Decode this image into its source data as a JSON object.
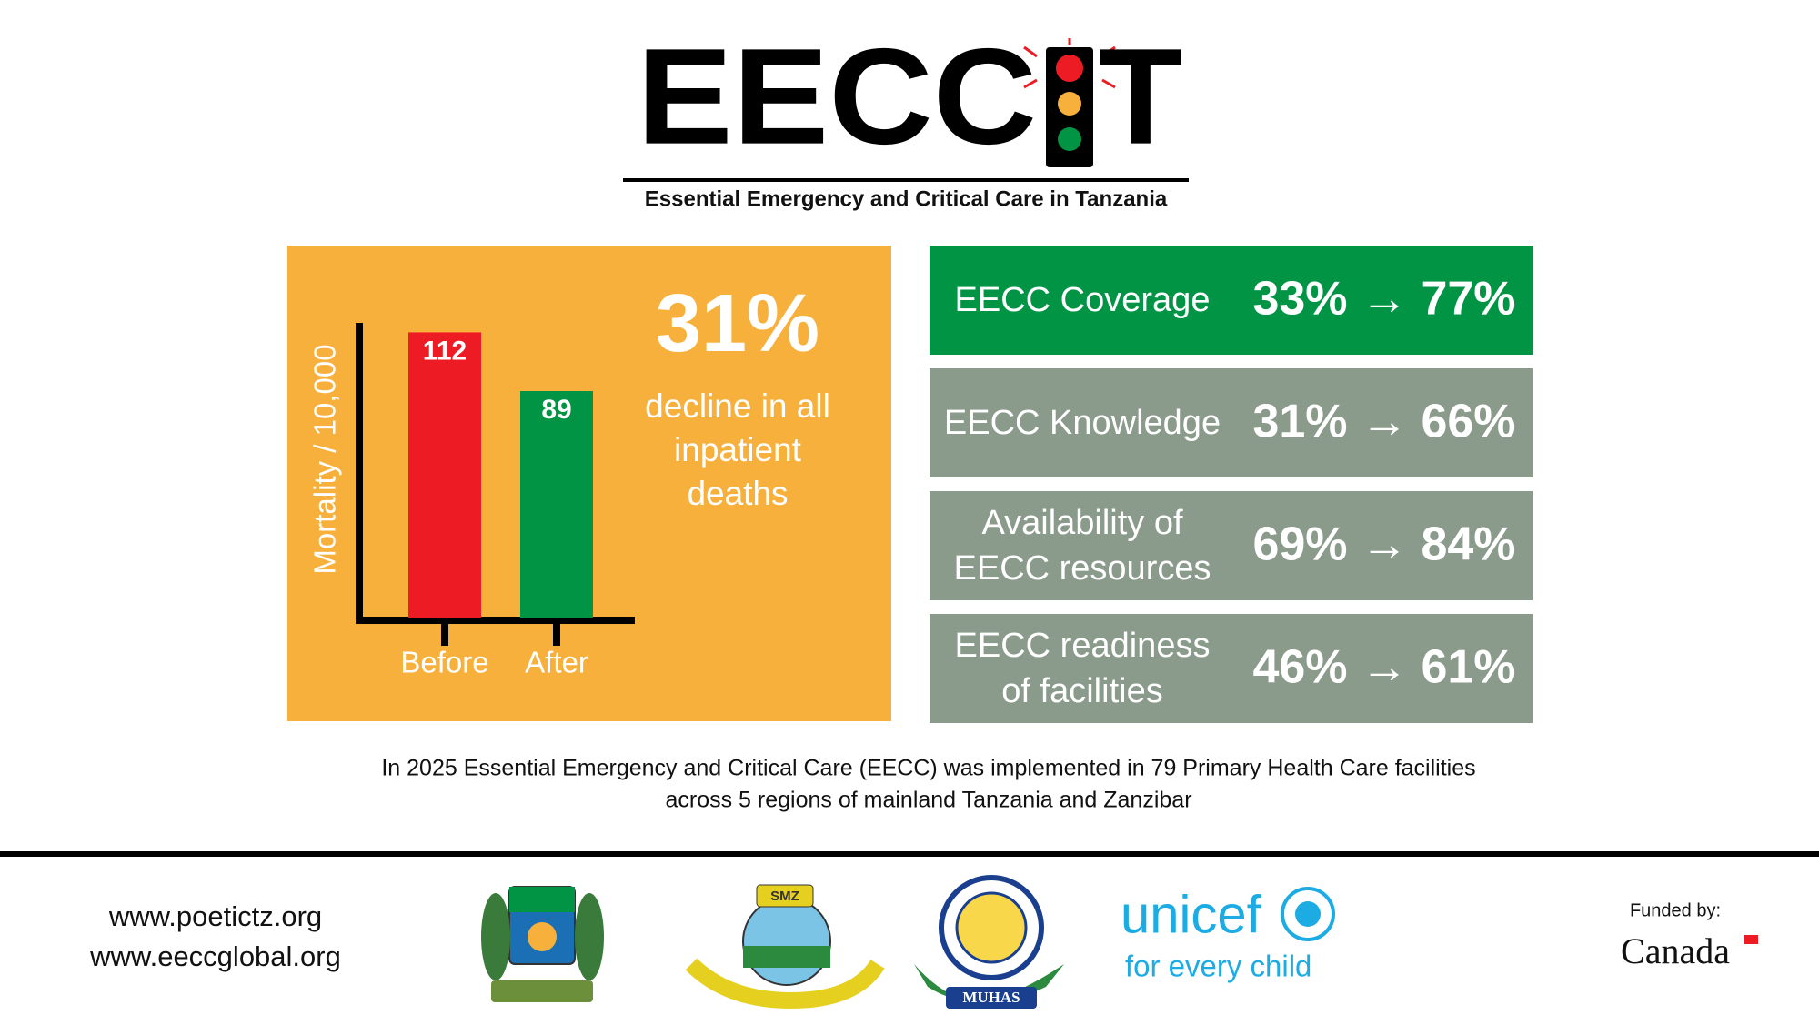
{
  "header": {
    "logo_left": "EECC",
    "logo_right": "T",
    "subtitle": "Essential Emergency and Critical Care in Tanzania"
  },
  "chart_data": {
    "type": "bar",
    "y_label": "Mortality / 10,000",
    "categories": [
      "Before",
      "After"
    ],
    "values": [
      112,
      89
    ],
    "colors": [
      "#ed1c24",
      "#009444"
    ],
    "ylim": [
      0,
      115
    ]
  },
  "highlight": {
    "value": "31%",
    "lines": [
      "decline in all",
      "inpatient",
      "deaths"
    ]
  },
  "stats": [
    {
      "label": [
        "EECC Coverage"
      ],
      "value": "33% → 77%",
      "color": "#009444"
    },
    {
      "label": [
        "EECC Knowledge"
      ],
      "value": "31% → 66%",
      "color": "#8a9a8b"
    },
    {
      "label": [
        "Availability of",
        "EECC resources"
      ],
      "value": "69% → 84%",
      "color": "#8a9a8b"
    },
    {
      "label": [
        "EECC readiness",
        "of facilities"
      ],
      "value": "46% → 61%",
      "color": "#8a9a8b"
    }
  ],
  "footnote": [
    "In 2025 Essential Emergency and Critical Care (EECC) was implemented in 79 Primary Health Care facilities",
    "across 5 regions of mainland Tanzania and Zanzibar"
  ],
  "footer": {
    "urls": [
      "www.poetictz.org",
      "www.eeccglobal.org"
    ],
    "smz": "SMZ",
    "muhas": "MUHAS",
    "unicef": "unicef",
    "unicef_tagline": "for every child",
    "funded_by": "Funded by:",
    "funder": "Canada"
  }
}
